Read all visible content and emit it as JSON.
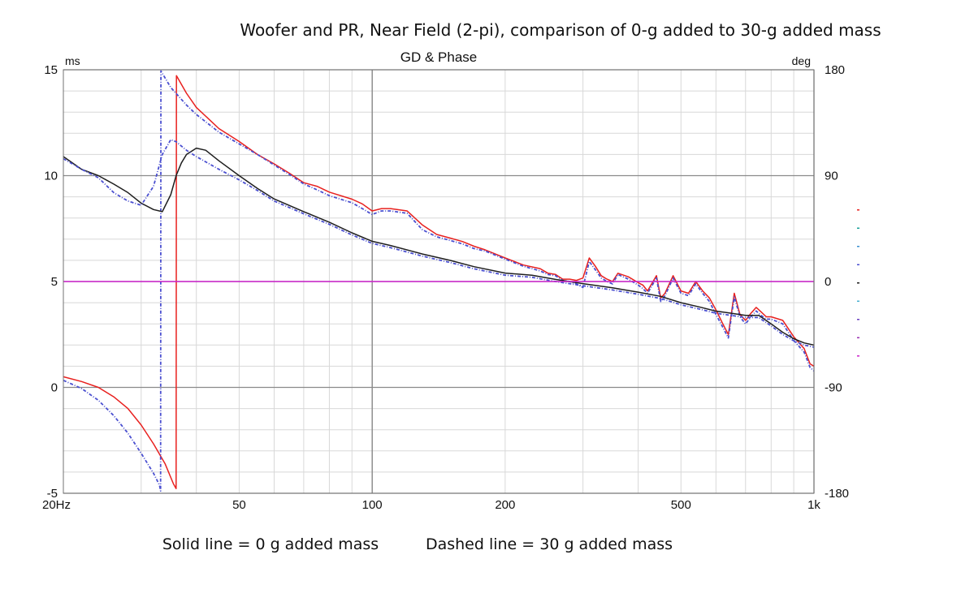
{
  "title": "Woofer and PR, Near Field (2-pi), comparison of 0-g added to 30-g added mass",
  "chart_data": {
    "type": "line",
    "subtitle": "GD & Phase",
    "x_scale": "log",
    "xlim": [
      20,
      1000
    ],
    "x_ticks": [
      {
        "value": 20,
        "label": "20Hz"
      },
      {
        "value": 50,
        "label": "50"
      },
      {
        "value": 100,
        "label": "100"
      },
      {
        "value": 200,
        "label": "200"
      },
      {
        "value": 500,
        "label": "500"
      },
      {
        "value": 1000,
        "label": "1k"
      }
    ],
    "y_left": {
      "unit": "ms",
      "ylim": [
        -5,
        15
      ],
      "ticks": [
        -5,
        0,
        5,
        10,
        15
      ]
    },
    "y_right": {
      "unit": "deg",
      "ylim": [
        -180,
        180
      ],
      "ticks": [
        -180,
        -90,
        0,
        90,
        180
      ]
    },
    "grid": true,
    "captions": [
      "Solid line = 0 g added mass",
      "Dashed line = 30 g added mass"
    ],
    "series": [
      {
        "color": "#e8201e",
        "style": "solid",
        "axis": "right",
        "points": [
          [
            20,
            -81
          ],
          [
            22,
            -85
          ],
          [
            24,
            -90
          ],
          [
            26,
            -98
          ],
          [
            28,
            -108
          ],
          [
            30,
            -122
          ],
          [
            32,
            -138
          ],
          [
            34,
            -155
          ],
          [
            35.5,
            -172
          ],
          [
            36,
            -176
          ],
          [
            36.05,
            175
          ],
          [
            38,
            160
          ],
          [
            40,
            148
          ],
          [
            45,
            130
          ],
          [
            50,
            119
          ],
          [
            55,
            108
          ],
          [
            60,
            100
          ],
          [
            65,
            92
          ],
          [
            70,
            84
          ],
          [
            75,
            81
          ],
          [
            80,
            76
          ],
          [
            90,
            70
          ],
          [
            95,
            66
          ],
          [
            100,
            60
          ],
          [
            105,
            62
          ],
          [
            110,
            62
          ],
          [
            120,
            60
          ],
          [
            130,
            48
          ],
          [
            140,
            40
          ],
          [
            150,
            37
          ],
          [
            160,
            34
          ],
          [
            170,
            30
          ],
          [
            180,
            27
          ],
          [
            200,
            20
          ],
          [
            220,
            14
          ],
          [
            240,
            11
          ],
          [
            250,
            7
          ],
          [
            260,
            6
          ],
          [
            270,
            2
          ],
          [
            280,
            2
          ],
          [
            290,
            1
          ],
          [
            300,
            3
          ],
          [
            310,
            20
          ],
          [
            320,
            13
          ],
          [
            330,
            5
          ],
          [
            340,
            2
          ],
          [
            350,
            0
          ],
          [
            360,
            7
          ],
          [
            380,
            4
          ],
          [
            400,
            -1
          ],
          [
            410,
            -3
          ],
          [
            420,
            -8
          ],
          [
            440,
            5
          ],
          [
            450,
            -14
          ],
          [
            460,
            -10
          ],
          [
            480,
            5
          ],
          [
            500,
            -8
          ],
          [
            520,
            -10
          ],
          [
            540,
            0
          ],
          [
            560,
            -8
          ],
          [
            580,
            -14
          ],
          [
            600,
            -24
          ],
          [
            620,
            -35
          ],
          [
            640,
            -45
          ],
          [
            660,
            -10
          ],
          [
            680,
            -28
          ],
          [
            700,
            -33
          ],
          [
            720,
            -27
          ],
          [
            740,
            -22
          ],
          [
            760,
            -26
          ],
          [
            780,
            -30
          ],
          [
            800,
            -30
          ],
          [
            850,
            -33
          ],
          [
            900,
            -47
          ],
          [
            950,
            -57
          ],
          [
            980,
            -70
          ],
          [
            1000,
            -72
          ]
        ]
      },
      {
        "color": "#4a4fd0",
        "style": "dashed",
        "axis": "right",
        "points": [
          [
            20,
            -84
          ],
          [
            22,
            -91
          ],
          [
            24,
            -101
          ],
          [
            26,
            -114
          ],
          [
            28,
            -129
          ],
          [
            30,
            -146
          ],
          [
            32,
            -163
          ],
          [
            33,
            -173
          ],
          [
            33.2,
            -178
          ],
          [
            33.25,
            179
          ],
          [
            35,
            165
          ],
          [
            38,
            150
          ],
          [
            40,
            142
          ],
          [
            45,
            127
          ],
          [
            50,
            117
          ],
          [
            55,
            108
          ],
          [
            60,
            99
          ],
          [
            65,
            91
          ],
          [
            70,
            83
          ],
          [
            75,
            78
          ],
          [
            80,
            73
          ],
          [
            90,
            67
          ],
          [
            95,
            62
          ],
          [
            100,
            57
          ],
          [
            105,
            60
          ],
          [
            110,
            60
          ],
          [
            120,
            58
          ],
          [
            130,
            44
          ],
          [
            140,
            38
          ],
          [
            150,
            35
          ],
          [
            160,
            32
          ],
          [
            170,
            28
          ],
          [
            180,
            26
          ],
          [
            200,
            19
          ],
          [
            220,
            13
          ],
          [
            240,
            9
          ],
          [
            250,
            6
          ],
          [
            260,
            5
          ],
          [
            270,
            1
          ],
          [
            280,
            0
          ],
          [
            290,
            -2
          ],
          [
            300,
            -5
          ],
          [
            310,
            17
          ],
          [
            320,
            10
          ],
          [
            330,
            3
          ],
          [
            340,
            0
          ],
          [
            350,
            -2
          ],
          [
            360,
            6
          ],
          [
            380,
            2
          ],
          [
            400,
            -3
          ],
          [
            410,
            -6
          ],
          [
            420,
            -10
          ],
          [
            440,
            3
          ],
          [
            450,
            -17
          ],
          [
            460,
            -12
          ],
          [
            480,
            3
          ],
          [
            500,
            -10
          ],
          [
            520,
            -12
          ],
          [
            540,
            -2
          ],
          [
            560,
            -10
          ],
          [
            580,
            -17
          ],
          [
            600,
            -28
          ],
          [
            620,
            -38
          ],
          [
            640,
            -48
          ],
          [
            660,
            -13
          ],
          [
            680,
            -30
          ],
          [
            700,
            -36
          ],
          [
            720,
            -30
          ],
          [
            740,
            -25
          ],
          [
            760,
            -29
          ],
          [
            780,
            -32
          ],
          [
            800,
            -32
          ],
          [
            850,
            -36
          ],
          [
            900,
            -50
          ],
          [
            950,
            -60
          ],
          [
            980,
            -73
          ],
          [
            1000,
            -76
          ]
        ]
      },
      {
        "color": "#1e1e1e",
        "style": "solid",
        "axis": "left",
        "points": [
          [
            20,
            10.9
          ],
          [
            22,
            10.3
          ],
          [
            24,
            10.0
          ],
          [
            26,
            9.6
          ],
          [
            28,
            9.2
          ],
          [
            30,
            8.7
          ],
          [
            32,
            8.4
          ],
          [
            33.5,
            8.3
          ],
          [
            35,
            9.1
          ],
          [
            36,
            10.0
          ],
          [
            37,
            10.6
          ],
          [
            38,
            11.0
          ],
          [
            40,
            11.3
          ],
          [
            42,
            11.2
          ],
          [
            45,
            10.7
          ],
          [
            50,
            10.0
          ],
          [
            55,
            9.4
          ],
          [
            60,
            8.9
          ],
          [
            70,
            8.3
          ],
          [
            80,
            7.8
          ],
          [
            90,
            7.3
          ],
          [
            100,
            6.9
          ],
          [
            110,
            6.7
          ],
          [
            130,
            6.3
          ],
          [
            150,
            6.0
          ],
          [
            170,
            5.7
          ],
          [
            200,
            5.4
          ],
          [
            230,
            5.3
          ],
          [
            260,
            5.1
          ],
          [
            300,
            4.9
          ],
          [
            350,
            4.7
          ],
          [
            400,
            4.5
          ],
          [
            450,
            4.3
          ],
          [
            500,
            4.0
          ],
          [
            550,
            3.8
          ],
          [
            600,
            3.6
          ],
          [
            650,
            3.5
          ],
          [
            700,
            3.4
          ],
          [
            750,
            3.4
          ],
          [
            800,
            3.0
          ],
          [
            850,
            2.6
          ],
          [
            900,
            2.3
          ],
          [
            950,
            2.1
          ],
          [
            1000,
            2.0
          ]
        ]
      },
      {
        "color": "#4a4fd0",
        "style": "dashed",
        "axis": "left",
        "points": [
          [
            20,
            10.8
          ],
          [
            22,
            10.3
          ],
          [
            24,
            9.9
          ],
          [
            26,
            9.2
          ],
          [
            28,
            8.8
          ],
          [
            30,
            8.6
          ],
          [
            32,
            9.5
          ],
          [
            33.5,
            11.0
          ],
          [
            35,
            11.7
          ],
          [
            36,
            11.6
          ],
          [
            38,
            11.2
          ],
          [
            40,
            10.9
          ],
          [
            45,
            10.3
          ],
          [
            50,
            9.8
          ],
          [
            55,
            9.3
          ],
          [
            60,
            8.8
          ],
          [
            70,
            8.2
          ],
          [
            80,
            7.7
          ],
          [
            90,
            7.2
          ],
          [
            100,
            6.8
          ],
          [
            110,
            6.6
          ],
          [
            130,
            6.2
          ],
          [
            150,
            5.9
          ],
          [
            170,
            5.6
          ],
          [
            200,
            5.3
          ],
          [
            230,
            5.2
          ],
          [
            260,
            5.0
          ],
          [
            300,
            4.8
          ],
          [
            350,
            4.6
          ],
          [
            400,
            4.4
          ],
          [
            450,
            4.2
          ],
          [
            500,
            3.9
          ],
          [
            550,
            3.7
          ],
          [
            600,
            3.5
          ],
          [
            650,
            3.4
          ],
          [
            700,
            3.3
          ],
          [
            750,
            3.3
          ],
          [
            800,
            2.9
          ],
          [
            850,
            2.5
          ],
          [
            900,
            2.2
          ],
          [
            950,
            2.0
          ],
          [
            1000,
            1.9
          ]
        ]
      },
      {
        "color": "#cc22cc",
        "style": "solid",
        "axis": "left",
        "points": [
          [
            20,
            5.0
          ],
          [
            1000,
            5.0
          ]
        ]
      }
    ],
    "legend_marks": [
      {
        "color": "#e8201e"
      },
      {
        "color": "#18a098"
      },
      {
        "color": "#3a8fd0"
      },
      {
        "color": "#4a4fd0"
      },
      {
        "color": "#1e1e1e"
      },
      {
        "color": "#4ab0d0"
      },
      {
        "color": "#6a3fc0"
      },
      {
        "color": "#9a2fb0"
      },
      {
        "color": "#cc22cc"
      }
    ]
  }
}
